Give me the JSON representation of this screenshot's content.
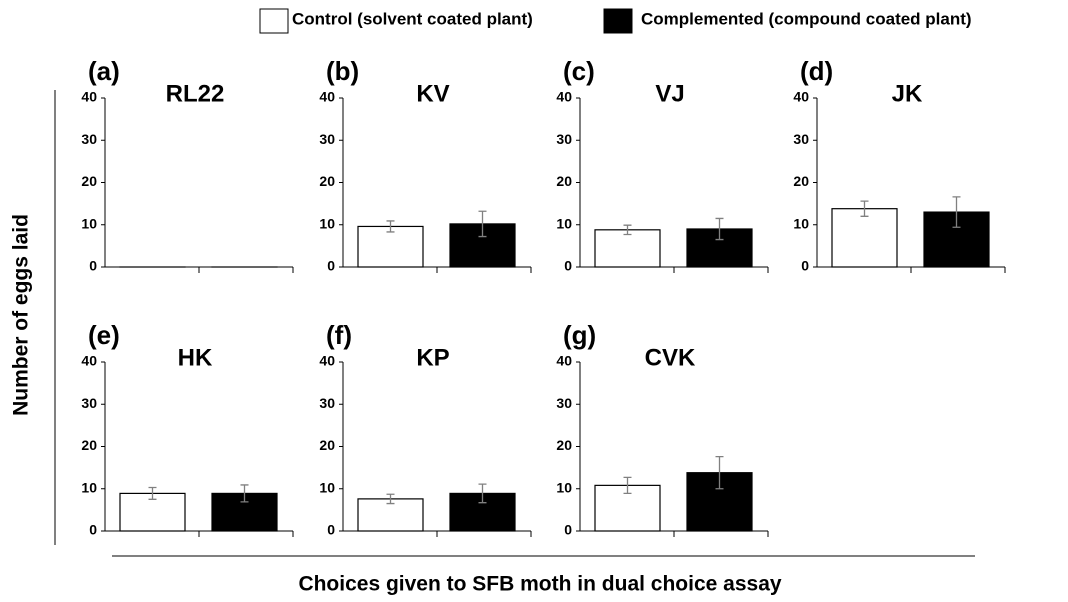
{
  "legend": [
    {
      "name": "Control (solvent coated plant)",
      "color": "#ffffff"
    },
    {
      "name": "Complemented (compound coated plant)",
      "color": "#000000"
    }
  ],
  "ylabel": "Number of eggs laid",
  "xlabel": "Choices given to SFB moth in dual choice assay",
  "chart_data": [
    {
      "type": "bar",
      "panel": "(a)",
      "title": "RL22",
      "values": [
        0,
        0
      ],
      "errors": [
        0,
        0
      ],
      "ylim": [
        0,
        40
      ],
      "yticks": [
        0,
        10,
        20,
        30,
        40
      ]
    },
    {
      "type": "bar",
      "panel": "(b)",
      "title": "KV",
      "values": [
        9.6,
        10.2
      ],
      "errors": [
        1.3,
        3.0
      ],
      "ylim": [
        0,
        40
      ],
      "yticks": [
        0,
        10,
        20,
        30,
        40
      ]
    },
    {
      "type": "bar",
      "panel": "(c)",
      "title": "VJ",
      "values": [
        8.8,
        9.0
      ],
      "errors": [
        1.1,
        2.5
      ],
      "ylim": [
        0,
        40
      ],
      "yticks": [
        0,
        10,
        20,
        30,
        40
      ]
    },
    {
      "type": "bar",
      "panel": "(d)",
      "title": "JK",
      "values": [
        13.8,
        13.0
      ],
      "errors": [
        1.8,
        3.6
      ],
      "ylim": [
        0,
        40
      ],
      "yticks": [
        0,
        10,
        20,
        30,
        40
      ]
    },
    {
      "type": "bar",
      "panel": "(e)",
      "title": "HK",
      "values": [
        8.9,
        8.9
      ],
      "errors": [
        1.4,
        2.0
      ],
      "ylim": [
        0,
        40
      ],
      "yticks": [
        0,
        10,
        20,
        30,
        40
      ]
    },
    {
      "type": "bar",
      "panel": "(f)",
      "title": "KP",
      "values": [
        7.6,
        8.9
      ],
      "errors": [
        1.1,
        2.2
      ],
      "ylim": [
        0,
        40
      ],
      "yticks": [
        0,
        10,
        20,
        30,
        40
      ]
    },
    {
      "type": "bar",
      "panel": "(g)",
      "title": "CVK",
      "values": [
        10.8,
        13.8
      ],
      "errors": [
        1.9,
        3.8
      ],
      "ylim": [
        0,
        40
      ],
      "yticks": [
        0,
        10,
        20,
        30,
        40
      ]
    }
  ]
}
